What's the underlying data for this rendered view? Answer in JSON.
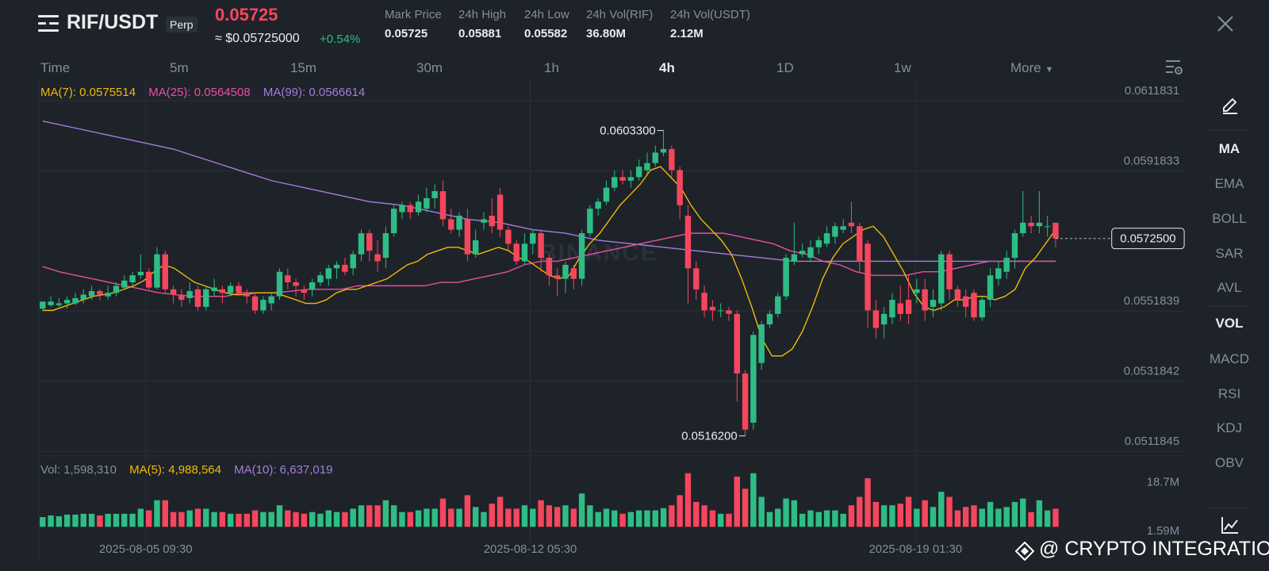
{
  "header": {
    "pair": "RIF/USDT",
    "contract_type": "Perp",
    "last_price": "0.05725",
    "usd_price": "≈ $0.05725000",
    "change": "+0.54%",
    "stats": [
      {
        "label": "Mark Price",
        "value": "0.05725"
      },
      {
        "label": "24h High",
        "value": "0.05881"
      },
      {
        "label": "24h Low",
        "value": "0.05582"
      },
      {
        "label": "24h Vol(RIF)",
        "value": "36.80M"
      },
      {
        "label": "24h Vol(USDT)",
        "value": "2.12M"
      }
    ]
  },
  "intervals": {
    "items": [
      "Time",
      "5m",
      "15m",
      "30m",
      "1h",
      "4h",
      "1D",
      "1w",
      "More"
    ],
    "active": "4h"
  },
  "ma_legend": {
    "ma7": "MA(7): 0.0575514",
    "ma25": "MA(25): 0.0564508",
    "ma99": "MA(99): 0.0566614"
  },
  "vol_legend": {
    "vol": "Vol: 1,598,310",
    "ma5": "MA(5): 4,988,564",
    "ma10": "MA(10): 6,637,019"
  },
  "indicators": [
    "MA",
    "EMA",
    "BOLL",
    "SAR",
    "AVL",
    "VOL",
    "MACD",
    "RSI",
    "KDJ",
    "OBV"
  ],
  "active_indicators": [
    "MA",
    "VOL"
  ],
  "colors": {
    "up": "#2ebd85",
    "down": "#f6465d",
    "ma7": "#f0b90b",
    "ma25": "#e84fa4",
    "ma99": "#a57ce0",
    "bg": "#1e2329"
  },
  "icons": [
    "menu-icon",
    "close-icon",
    "chart-settings-icon",
    "pencil-icon",
    "line-chart-icon",
    "binance-logo"
  ],
  "watermark": "@ CRYPTO INTEGRATION",
  "chart_data": {
    "type": "candlestick",
    "price_axis_ticks": [
      "0.0611831",
      "0.0591833",
      "0.0551839",
      "0.0531842",
      "0.0511845"
    ],
    "current_price_label": "0.0572500",
    "high_label": "0.0603300",
    "low_label": "0.0516200",
    "volume_axis_ticks": [
      "18.7M",
      "1.59M"
    ],
    "time_labels": [
      "2025-08-05 09:30",
      "2025-08-12 05:30",
      "2025-08-19 01:30"
    ],
    "ylim": [
      0.0511845,
      0.0611831
    ],
    "watermark_text": "BINANCE",
    "candles": [
      [
        0.05525,
        0.05545,
        0.0554,
        0.0552
      ],
      [
        0.05535,
        0.05545,
        0.0556,
        0.0553
      ],
      [
        0.05535,
        0.0554,
        0.05555,
        0.0553
      ],
      [
        0.0554,
        0.0555,
        0.0556,
        0.05525
      ],
      [
        0.0554,
        0.05555,
        0.0557,
        0.05535
      ],
      [
        0.0555,
        0.05565,
        0.0558,
        0.0554
      ],
      [
        0.0556,
        0.05575,
        0.0559,
        0.0555
      ],
      [
        0.05575,
        0.05565,
        0.0558,
        0.0555
      ],
      [
        0.0556,
        0.0557,
        0.0559,
        0.0555
      ],
      [
        0.0557,
        0.0559,
        0.056,
        0.0556
      ],
      [
        0.05585,
        0.05605,
        0.0562,
        0.0558
      ],
      [
        0.056,
        0.0562,
        0.0563,
        0.0559
      ],
      [
        0.0562,
        0.0563,
        0.0568,
        0.0561
      ],
      [
        0.0563,
        0.05585,
        0.0564,
        0.0558
      ],
      [
        0.05585,
        0.0568,
        0.057,
        0.0558
      ],
      [
        0.0568,
        0.0558,
        0.0569,
        0.0557
      ],
      [
        0.0558,
        0.05565,
        0.0559,
        0.0554
      ],
      [
        0.05565,
        0.0555,
        0.0558,
        0.0553
      ],
      [
        0.05555,
        0.05575,
        0.056,
        0.0554
      ],
      [
        0.0558,
        0.0553,
        0.0559,
        0.0552
      ],
      [
        0.0553,
        0.0558,
        0.0559,
        0.0552
      ],
      [
        0.05575,
        0.05585,
        0.0561,
        0.0556
      ],
      [
        0.0558,
        0.0557,
        0.0559,
        0.0554
      ],
      [
        0.0557,
        0.0559,
        0.056,
        0.0556
      ],
      [
        0.0559,
        0.0557,
        0.056,
        0.0556
      ],
      [
        0.0557,
        0.0556,
        0.0558,
        0.0554
      ],
      [
        0.0556,
        0.0552,
        0.0557,
        0.0551
      ],
      [
        0.0552,
        0.0555,
        0.0556,
        0.0551
      ],
      [
        0.0554,
        0.0556,
        0.0557,
        0.0552
      ],
      [
        0.0556,
        0.0563,
        0.0564,
        0.0555
      ],
      [
        0.0562,
        0.056,
        0.0564,
        0.0558
      ],
      [
        0.056,
        0.0559,
        0.0561,
        0.0556
      ],
      [
        0.0558,
        0.0557,
        0.0559,
        0.0555
      ],
      [
        0.0558,
        0.056,
        0.0561,
        0.0556
      ],
      [
        0.056,
        0.0562,
        0.0563,
        0.0559
      ],
      [
        0.0561,
        0.0564,
        0.0565,
        0.0559
      ],
      [
        0.0564,
        0.0565,
        0.0566,
        0.0561
      ],
      [
        0.0565,
        0.0563,
        0.0567,
        0.0562
      ],
      [
        0.0564,
        0.0568,
        0.0569,
        0.0562
      ],
      [
        0.0568,
        0.0574,
        0.0575,
        0.0566
      ],
      [
        0.0574,
        0.0569,
        0.0575,
        0.0566
      ],
      [
        0.0568,
        0.0566,
        0.0572,
        0.0563
      ],
      [
        0.0567,
        0.0574,
        0.0576,
        0.0564
      ],
      [
        0.0574,
        0.0581,
        0.0582,
        0.0573
      ],
      [
        0.058,
        0.0582,
        0.0583,
        0.0578
      ],
      [
        0.0582,
        0.058,
        0.0583,
        0.0578
      ],
      [
        0.058,
        0.0583,
        0.0585,
        0.0579
      ],
      [
        0.0581,
        0.0584,
        0.0587,
        0.058
      ],
      [
        0.0584,
        0.0586,
        0.0588,
        0.0581
      ],
      [
        0.0586,
        0.0578,
        0.0589,
        0.0576
      ],
      [
        0.0578,
        0.0575,
        0.0581,
        0.0574
      ],
      [
        0.0575,
        0.0579,
        0.058,
        0.0573
      ],
      [
        0.0578,
        0.0568,
        0.0581,
        0.0566
      ],
      [
        0.0568,
        0.0572,
        0.0575,
        0.0567
      ],
      [
        0.0577,
        0.0578,
        0.058,
        0.0575
      ],
      [
        0.0579,
        0.0576,
        0.0584,
        0.0574
      ],
      [
        0.0585,
        0.0575,
        0.0587,
        0.0573
      ],
      [
        0.0575,
        0.0571,
        0.0576,
        0.0569
      ],
      [
        0.0571,
        0.0566,
        0.0572,
        0.0565
      ],
      [
        0.0566,
        0.0571,
        0.0574,
        0.0565
      ],
      [
        0.0571,
        0.0574,
        0.0575,
        0.0568
      ],
      [
        0.0574,
        0.0567,
        0.0575,
        0.0563
      ],
      [
        0.0567,
        0.0562,
        0.0568,
        0.0559
      ],
      [
        0.0562,
        0.0561,
        0.0564,
        0.0556
      ],
      [
        0.0561,
        0.0565,
        0.0566,
        0.0557
      ],
      [
        0.0564,
        0.0561,
        0.0565,
        0.0558
      ],
      [
        0.0561,
        0.0574,
        0.0575,
        0.0559
      ],
      [
        0.0574,
        0.0581,
        0.0582,
        0.0573
      ],
      [
        0.0581,
        0.0583,
        0.0584,
        0.0579
      ],
      [
        0.0583,
        0.0587,
        0.0589,
        0.0582
      ],
      [
        0.0587,
        0.059,
        0.0592,
        0.0586
      ],
      [
        0.059,
        0.0589,
        0.0592,
        0.0588
      ],
      [
        0.0589,
        0.059,
        0.0592,
        0.0587
      ],
      [
        0.059,
        0.0593,
        0.0595,
        0.0589
      ],
      [
        0.0592,
        0.0594,
        0.0597,
        0.0591
      ],
      [
        0.0594,
        0.0597,
        0.0599,
        0.0593
      ],
      [
        0.0597,
        0.0598,
        0.06033,
        0.0596
      ],
      [
        0.0598,
        0.0592,
        0.0599,
        0.059
      ],
      [
        0.0592,
        0.0582,
        0.0593,
        0.0578
      ],
      [
        0.0579,
        0.0564,
        0.0582,
        0.0554
      ],
      [
        0.0564,
        0.0558,
        0.0566,
        0.0555
      ],
      [
        0.0557,
        0.0552,
        0.0559,
        0.055
      ],
      [
        0.0553,
        0.0552,
        0.0555,
        0.0549
      ],
      [
        0.0552,
        0.0552,
        0.0554,
        0.055
      ],
      [
        0.0552,
        0.0551,
        0.0553,
        0.0549
      ],
      [
        0.0551,
        0.0534,
        0.0552,
        0.0526
      ],
      [
        0.0534,
        0.0518,
        0.0535,
        0.05162
      ],
      [
        0.052,
        0.0545,
        0.0546,
        0.0518
      ],
      [
        0.0537,
        0.0548,
        0.0549,
        0.0535
      ],
      [
        0.0548,
        0.0551,
        0.0552,
        0.0547
      ],
      [
        0.0551,
        0.0556,
        0.0557,
        0.055
      ],
      [
        0.0556,
        0.0567,
        0.0568,
        0.0555
      ],
      [
        0.0566,
        0.0568,
        0.0577,
        0.0565
      ],
      [
        0.0568,
        0.0569,
        0.0571,
        0.0567
      ],
      [
        0.0567,
        0.057,
        0.0572,
        0.0566
      ],
      [
        0.057,
        0.0572,
        0.0573,
        0.0568
      ],
      [
        0.0571,
        0.0574,
        0.0576,
        0.057
      ],
      [
        0.0573,
        0.0576,
        0.0577,
        0.0571
      ],
      [
        0.0575,
        0.0576,
        0.0578,
        0.0574
      ],
      [
        0.0577,
        0.0576,
        0.0583,
        0.0574
      ],
      [
        0.0576,
        0.0566,
        0.0577,
        0.0563
      ],
      [
        0.0571,
        0.0552,
        0.0572,
        0.0547
      ],
      [
        0.0552,
        0.0547,
        0.0555,
        0.0544
      ],
      [
        0.0548,
        0.0551,
        0.0553,
        0.0544
      ],
      [
        0.055,
        0.0555,
        0.0557,
        0.0548
      ],
      [
        0.0554,
        0.0551,
        0.0559,
        0.0549
      ],
      [
        0.0555,
        0.0551,
        0.0562,
        0.0548
      ],
      [
        0.0557,
        0.0558,
        0.0561,
        0.0554
      ],
      [
        0.0558,
        0.0552,
        0.0561,
        0.0549
      ],
      [
        0.0553,
        0.0555,
        0.0558,
        0.055
      ],
      [
        0.0554,
        0.0568,
        0.0569,
        0.0552
      ],
      [
        0.0568,
        0.0558,
        0.0569,
        0.0555
      ],
      [
        0.0558,
        0.0555,
        0.0559,
        0.0553
      ],
      [
        0.0556,
        0.0553,
        0.0558,
        0.055
      ],
      [
        0.0557,
        0.055,
        0.0558,
        0.0549
      ],
      [
        0.055,
        0.0555,
        0.0556,
        0.0549
      ],
      [
        0.0555,
        0.0562,
        0.0564,
        0.0553
      ],
      [
        0.0561,
        0.0564,
        0.0566,
        0.0559
      ],
      [
        0.0563,
        0.0567,
        0.0569,
        0.0561
      ],
      [
        0.0567,
        0.0574,
        0.0575,
        0.0564
      ],
      [
        0.0574,
        0.0577,
        0.0586,
        0.0573
      ],
      [
        0.0577,
        0.0576,
        0.0579,
        0.0574
      ],
      [
        0.0576,
        0.0577,
        0.0586,
        0.0574
      ],
      [
        0.0576,
        0.0576,
        0.0579,
        0.0573
      ],
      [
        0.0577,
        0.05725,
        0.0577,
        0.057
      ]
    ],
    "ma7": [
      0.0552,
      0.0552,
      0.0553,
      0.0554,
      0.0555,
      0.0556,
      0.05565,
      0.0557,
      0.0558,
      0.0559,
      0.05605,
      0.0563,
      0.0565,
      0.0564,
      0.0562,
      0.056,
      0.0559,
      0.0558,
      0.0557,
      0.05565,
      0.05565,
      0.0557,
      0.0557,
      0.0557,
      0.0556,
      0.0555,
      0.0554,
      0.0554,
      0.0555,
      0.0557,
      0.0558,
      0.0558,
      0.0559,
      0.056,
      0.0561,
      0.0563,
      0.0565,
      0.0566,
      0.0568,
      0.0569,
      0.057,
      0.057,
      0.0569,
      0.0568,
      0.0569,
      0.057,
      0.0569,
      0.0567,
      0.0566,
      0.0564,
      0.0562,
      0.0561,
      0.0562,
      0.0567,
      0.0571,
      0.0574,
      0.0578,
      0.0582,
      0.0585,
      0.0588,
      0.0592,
      0.0593,
      0.059,
      0.0587,
      0.0582,
      0.0578,
      0.0575,
      0.0572,
      0.0568,
      0.0561,
      0.0553,
      0.0544,
      0.0539,
      0.0539,
      0.0541,
      0.0546,
      0.0553,
      0.0561,
      0.0567,
      0.0571,
      0.0573,
      0.0575,
      0.0576,
      0.0573,
      0.0568,
      0.0563,
      0.0557,
      0.0553,
      0.0552,
      0.0553,
      0.0555,
      0.0555,
      0.0556,
      0.0556,
      0.0555,
      0.0556,
      0.0558,
      0.0564,
      0.0567,
      0.0571,
      0.0575
    ],
    "ma25": [
      0.05645,
      0.0563,
      0.0562,
      0.0561,
      0.056,
      0.0559,
      0.0558,
      0.0557,
      0.05565,
      0.0556,
      0.0556,
      0.0556,
      0.0557,
      0.0557,
      0.0557,
      0.05575,
      0.0558,
      0.0558,
      0.0558,
      0.0559,
      0.0559,
      0.0559,
      0.0559,
      0.0559,
      0.056,
      0.056,
      0.0561,
      0.0562,
      0.0563,
      0.0565,
      0.0566,
      0.0566,
      0.0567,
      0.0568,
      0.0569,
      0.057,
      0.0571,
      0.0572,
      0.0573,
      0.0574,
      0.0574,
      0.0574,
      0.0573,
      0.0572,
      0.0571,
      0.0569,
      0.0568,
      0.0566,
      0.0565,
      0.0563,
      0.0562,
      0.0562,
      0.0562,
      0.0563,
      0.0563,
      0.0564,
      0.0565,
      0.0566,
      0.0566,
      0.0566,
      0.0566,
      0.0566
    ],
    "ma99": [
      0.0606,
      0.0604,
      0.0602,
      0.06,
      0.0598,
      0.0595,
      0.0592,
      0.0589,
      0.0587,
      0.0585,
      0.0583,
      0.0582,
      0.058,
      0.0578,
      0.0577,
      0.0575,
      0.0574,
      0.0572,
      0.0571,
      0.057,
      0.0569,
      0.0568,
      0.0567,
      0.0566,
      0.0566,
      0.0566,
      0.0566,
      0.0566,
      0.0566,
      0.0566,
      0.0566,
      0.0566
    ]
  }
}
